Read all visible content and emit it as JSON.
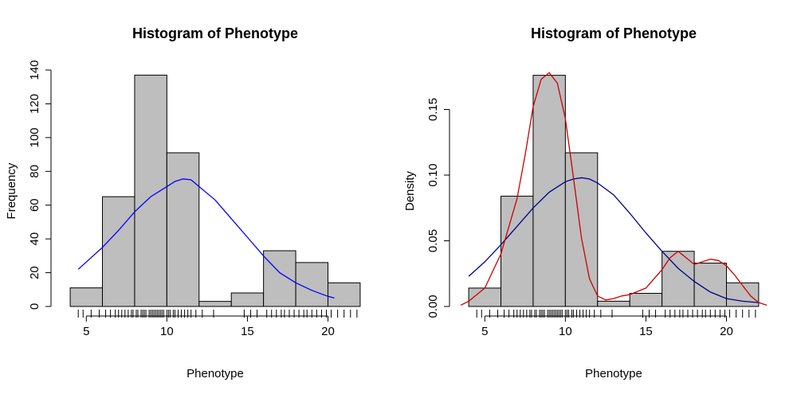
{
  "chart_data": [
    {
      "type": "bar",
      "title": "Histogram of Phenotype",
      "xlabel": "Phenotype",
      "ylabel": "Frequency",
      "xlim": [
        3.6,
        22.4
      ],
      "ylim": [
        0,
        140
      ],
      "xticks": [
        5,
        10,
        15,
        20
      ],
      "yticks": [
        0,
        20,
        40,
        60,
        80,
        100,
        120,
        140
      ],
      "xtick_labels": [
        "5",
        "10",
        "15",
        "20"
      ],
      "ytick_labels": [
        "0",
        "20",
        "40",
        "60",
        "80",
        "100",
        "120",
        "140"
      ],
      "bins": [
        {
          "x0": 4,
          "x1": 6,
          "value": 11
        },
        {
          "x0": 6,
          "x1": 8,
          "value": 65
        },
        {
          "x0": 8,
          "x1": 10,
          "value": 137
        },
        {
          "x0": 10,
          "x1": 12,
          "value": 91
        },
        {
          "x0": 12,
          "x1": 14,
          "value": 3
        },
        {
          "x0": 14,
          "x1": 16,
          "value": 8
        },
        {
          "x0": 16,
          "x1": 18,
          "value": 33
        },
        {
          "x0": 18,
          "x1": 20,
          "value": 26
        },
        {
          "x0": 20,
          "x1": 22,
          "value": 14
        }
      ],
      "series": [
        {
          "color": "#0000ff",
          "x": [
            4.5,
            6,
            7,
            8,
            9,
            10,
            10.5,
            11,
            11.5,
            12,
            13,
            14,
            15,
            16,
            17,
            18,
            19,
            20,
            20.4
          ],
          "values": [
            22,
            35,
            45,
            56,
            65,
            71,
            74,
            75.5,
            75,
            71,
            63,
            52,
            41,
            30,
            20,
            14,
            9.5,
            6,
            5
          ]
        }
      ],
      "rug": [
        4.5,
        4.8,
        5.3,
        5.8,
        6.2,
        6.5,
        6.8,
        7.0,
        7.2,
        7.4,
        7.6,
        7.8,
        7.9,
        8.1,
        8.2,
        8.4,
        8.5,
        8.6,
        8.7,
        8.9,
        9.0,
        9.1,
        9.2,
        9.3,
        9.4,
        9.5,
        9.6,
        9.7,
        9.8,
        10.0,
        10.1,
        10.2,
        10.4,
        10.5,
        10.7,
        10.9,
        11.1,
        11.3,
        11.5,
        11.8,
        12.2,
        12.9,
        14.8,
        15.2,
        15.6,
        16.2,
        16.5,
        16.8,
        17.1,
        17.3,
        17.6,
        17.9,
        18.2,
        18.5,
        18.7,
        19.0,
        19.3,
        19.6,
        19.9,
        20.2,
        20.6,
        21.0,
        21.4,
        21.8
      ],
      "bar_color": "#bebebe"
    },
    {
      "type": "bar",
      "title": "Histogram of Phenotype",
      "xlabel": "Phenotype",
      "ylabel": "Density",
      "xlim": [
        3.6,
        22.4
      ],
      "ylim": [
        0,
        0.18
      ],
      "xticks": [
        5,
        10,
        15,
        20
      ],
      "yticks": [
        0,
        0.05,
        0.1,
        0.15
      ],
      "xtick_labels": [
        "5",
        "10",
        "15",
        "20"
      ],
      "ytick_labels": [
        "0.00",
        "0.05",
        "0.10",
        "0.15"
      ],
      "bins": [
        {
          "x0": 4,
          "x1": 6,
          "value": 0.014
        },
        {
          "x0": 6,
          "x1": 8,
          "value": 0.084
        },
        {
          "x0": 8,
          "x1": 10,
          "value": 0.176
        },
        {
          "x0": 10,
          "x1": 12,
          "value": 0.117
        },
        {
          "x0": 12,
          "x1": 14,
          "value": 0.004
        },
        {
          "x0": 14,
          "x1": 16,
          "value": 0.01
        },
        {
          "x0": 16,
          "x1": 18,
          "value": 0.042
        },
        {
          "x0": 18,
          "x1": 20,
          "value": 0.033
        },
        {
          "x0": 20,
          "x1": 22,
          "value": 0.018
        }
      ],
      "series": [
        {
          "color": "#00008b",
          "x": [
            4,
            5,
            6,
            7,
            8,
            9,
            10,
            10.5,
            11,
            11.5,
            12,
            13,
            14,
            15,
            16,
            17,
            18,
            19,
            20,
            21,
            22
          ],
          "values": [
            0.023,
            0.034,
            0.047,
            0.061,
            0.075,
            0.087,
            0.095,
            0.097,
            0.098,
            0.097,
            0.094,
            0.085,
            0.071,
            0.056,
            0.042,
            0.029,
            0.019,
            0.011,
            0.006,
            0.004,
            0.003
          ]
        },
        {
          "color": "#cd0000",
          "x": [
            3.5,
            4,
            5,
            6,
            7,
            7.5,
            8,
            8.5,
            9,
            9.5,
            10,
            10.5,
            11,
            11.5,
            12,
            12.5,
            13,
            13.5,
            14,
            15,
            16,
            16.5,
            17,
            17.5,
            18,
            18.5,
            19,
            19.5,
            20,
            20.5,
            21,
            21.5,
            22,
            22.5
          ],
          "values": [
            0.001,
            0.004,
            0.014,
            0.04,
            0.082,
            0.115,
            0.152,
            0.173,
            0.178,
            0.17,
            0.143,
            0.098,
            0.052,
            0.021,
            0.008,
            0.005,
            0.006,
            0.008,
            0.009,
            0.014,
            0.028,
            0.037,
            0.042,
            0.037,
            0.032,
            0.034,
            0.036,
            0.035,
            0.031,
            0.024,
            0.016,
            0.008,
            0.003,
            0.001
          ]
        }
      ],
      "rug": [
        4.5,
        4.8,
        5.3,
        5.8,
        6.2,
        6.5,
        6.8,
        7.0,
        7.2,
        7.4,
        7.6,
        7.8,
        7.9,
        8.1,
        8.2,
        8.4,
        8.5,
        8.6,
        8.7,
        8.9,
        9.0,
        9.1,
        9.2,
        9.3,
        9.4,
        9.5,
        9.6,
        9.7,
        9.8,
        10.0,
        10.1,
        10.2,
        10.4,
        10.5,
        10.7,
        10.9,
        11.1,
        11.3,
        11.5,
        11.8,
        12.2,
        12.9,
        14.8,
        15.2,
        15.6,
        16.2,
        16.5,
        16.8,
        17.1,
        17.3,
        17.6,
        17.9,
        18.2,
        18.5,
        18.7,
        19.0,
        19.3,
        19.6,
        19.9,
        20.2,
        20.6,
        21.0,
        21.4,
        21.8
      ],
      "bar_color": "#bebebe"
    }
  ]
}
